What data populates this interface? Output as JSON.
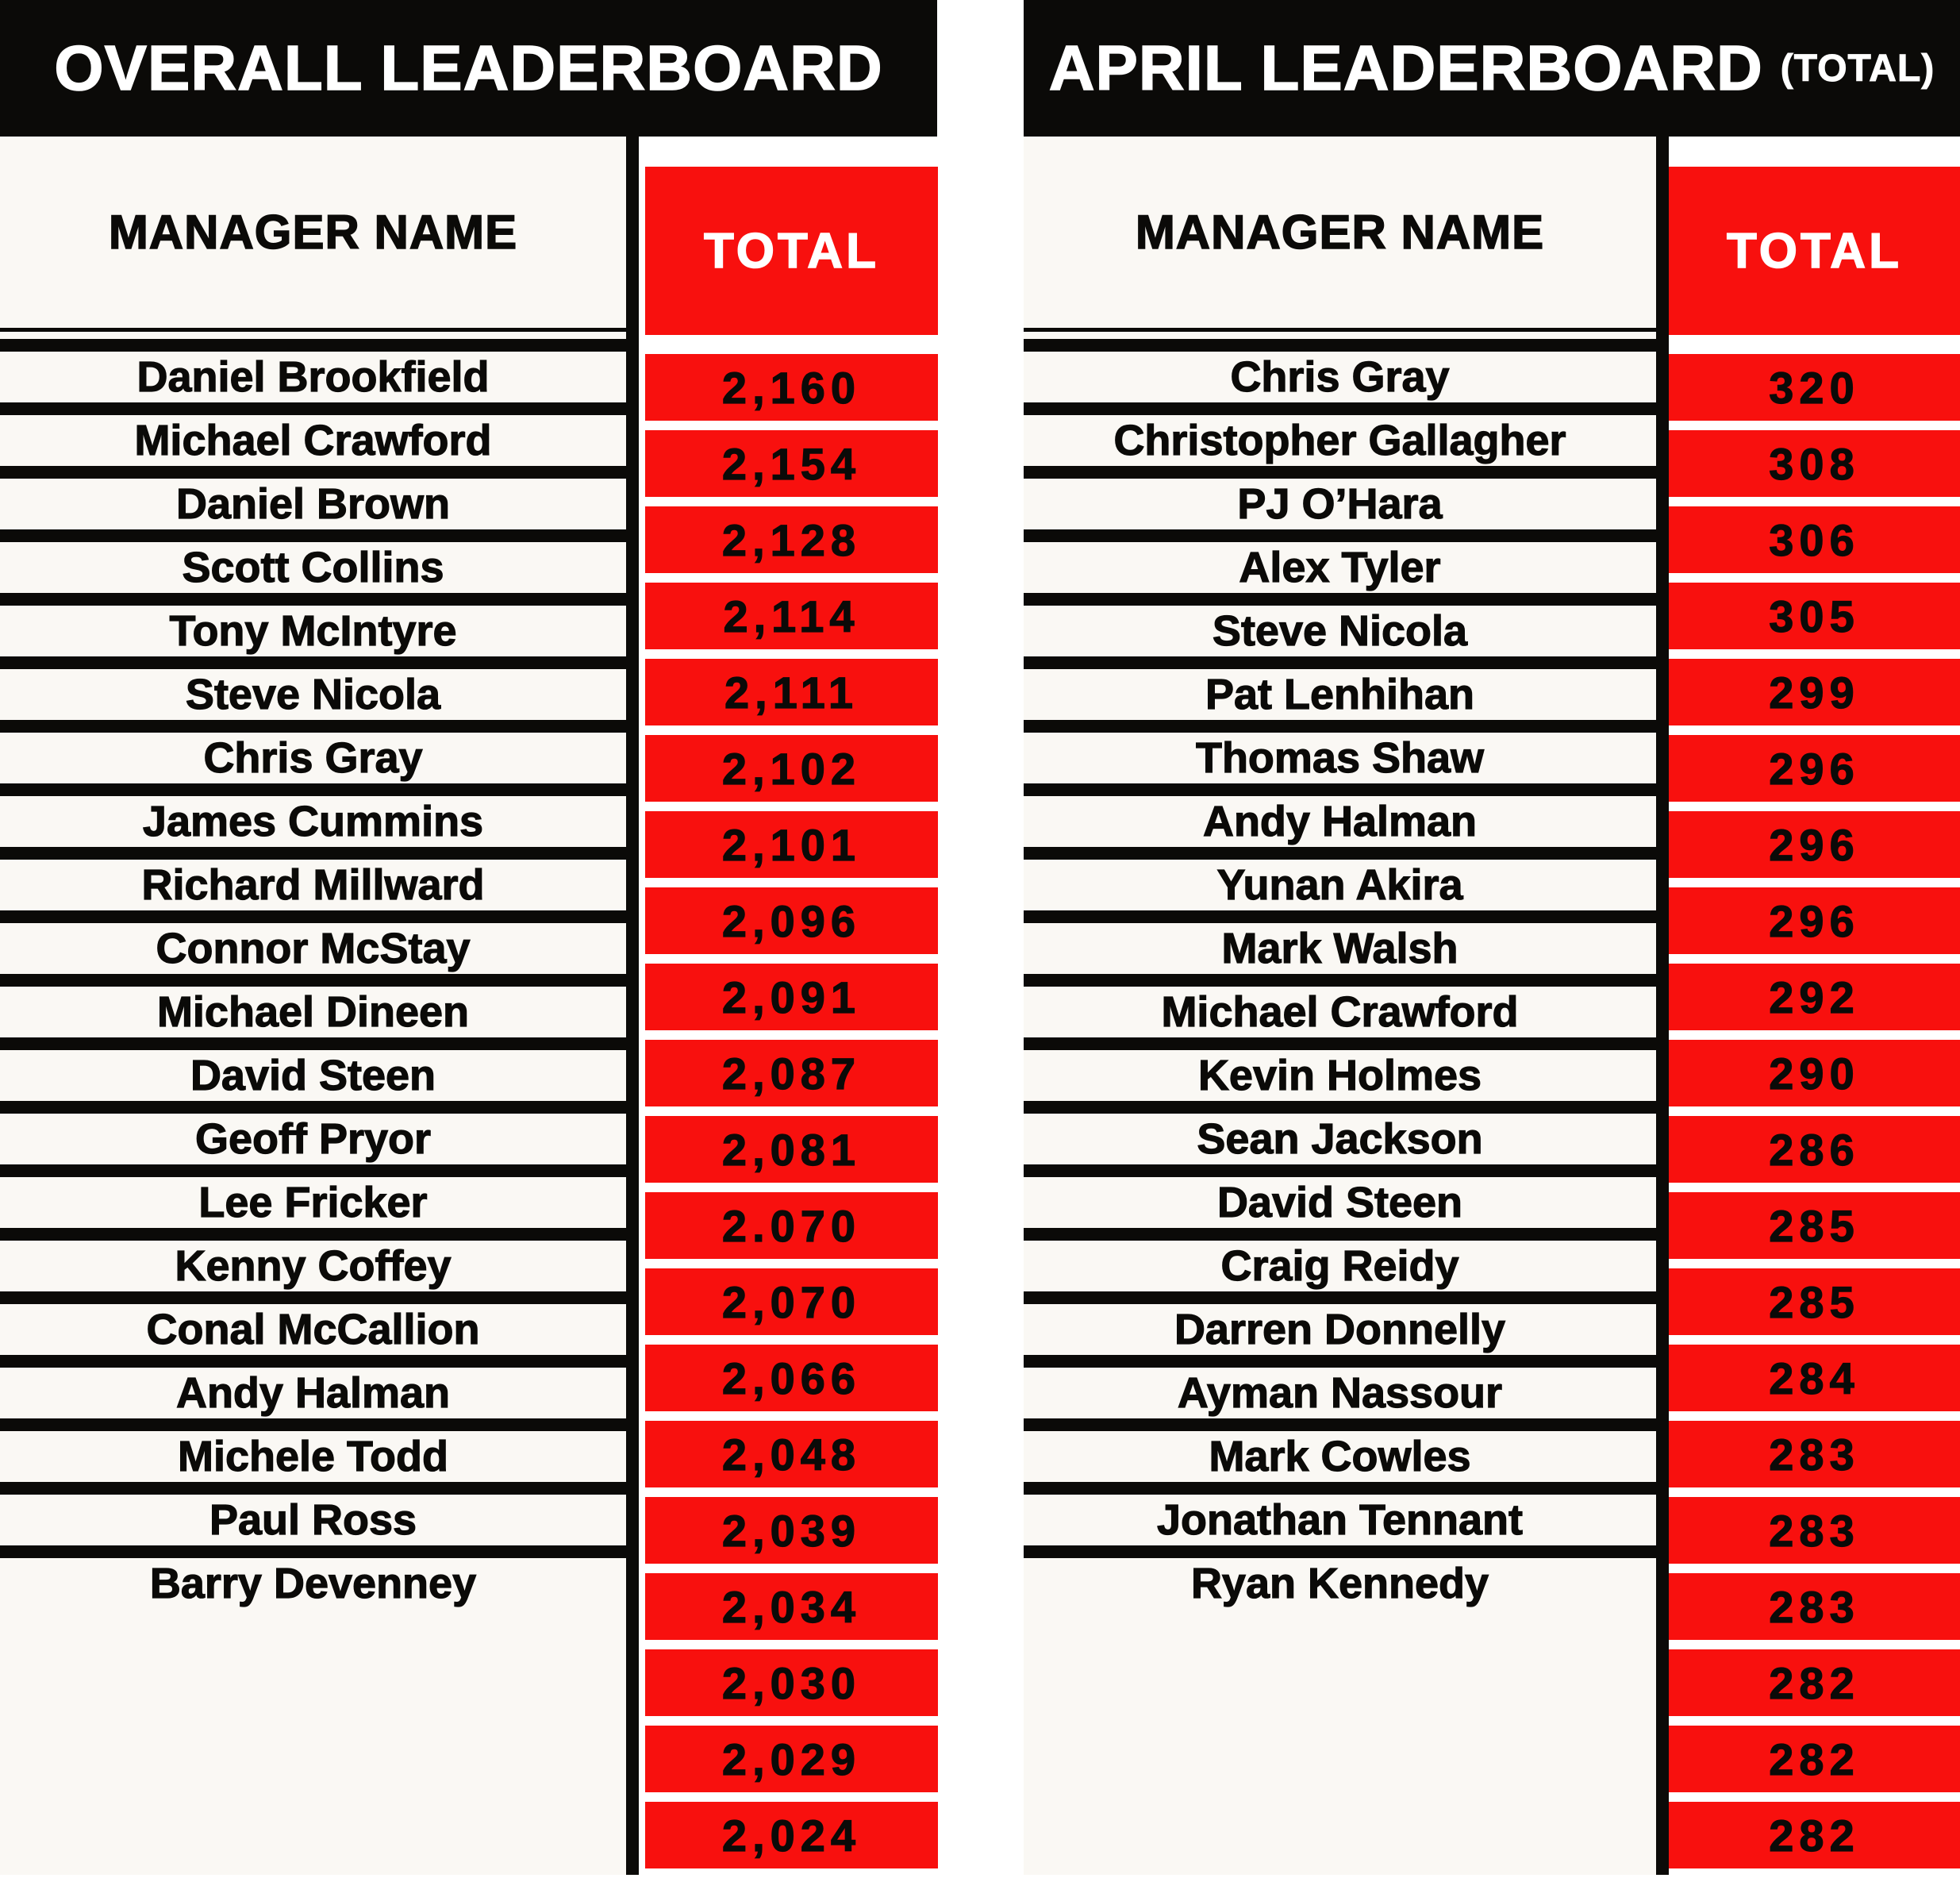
{
  "colors": {
    "accent_red": "#f8100e",
    "ink_black": "#0b0a08",
    "cell_offwhite": "#faf8f4",
    "gutter_white": "#ffffff",
    "title_text_white": "#ffffff"
  },
  "chart_data": [
    {
      "type": "table",
      "panel": "overall",
      "title": "OVERALL LEADERBOARD",
      "title_suffix": "",
      "columns": {
        "name": "MANAGER NAME",
        "total": "TOTAL"
      },
      "rows": [
        {
          "name": "Daniel Brookfield",
          "total": "2,160"
        },
        {
          "name": "Michael Crawford",
          "total": "2,154"
        },
        {
          "name": "Daniel Brown",
          "total": "2,128"
        },
        {
          "name": "Scott Collins",
          "total": "2,114"
        },
        {
          "name": "Tony McIntyre",
          "total": "2,111"
        },
        {
          "name": "Steve Nicola",
          "total": "2,102"
        },
        {
          "name": "Chris Gray",
          "total": "2,101"
        },
        {
          "name": "James Cummins",
          "total": "2,096"
        },
        {
          "name": "Richard Millward",
          "total": "2,091"
        },
        {
          "name": "Connor McStay",
          "total": "2,087"
        },
        {
          "name": "Michael Dineen",
          "total": "2,081"
        },
        {
          "name": "David Steen",
          "total": "2.070"
        },
        {
          "name": "Geoff Pryor",
          "total": "2,070"
        },
        {
          "name": "Lee Fricker",
          "total": "2,066"
        },
        {
          "name": "Kenny Coffey",
          "total": "2,048"
        },
        {
          "name": "Conal McCallion",
          "total": "2,039"
        },
        {
          "name": "Andy Halman",
          "total": "2,034"
        },
        {
          "name": "Michele Todd",
          "total": "2,030"
        },
        {
          "name": "Paul Ross",
          "total": "2,029"
        },
        {
          "name": "Barry Devenney",
          "total": "2,024"
        }
      ]
    },
    {
      "type": "table",
      "panel": "april",
      "title": "APRIL LEADERBOARD",
      "title_suffix": "(TOTAL)",
      "columns": {
        "name": "MANAGER NAME",
        "total": "TOTAL"
      },
      "rows": [
        {
          "name": "Chris Gray",
          "total": "320"
        },
        {
          "name": "Christopher Gallagher",
          "total": "308"
        },
        {
          "name": "PJ O’Hara",
          "total": "306"
        },
        {
          "name": "Alex Tyler",
          "total": "305"
        },
        {
          "name": "Steve Nicola",
          "total": "299"
        },
        {
          "name": "Pat Lenhihan",
          "total": "296"
        },
        {
          "name": "Thomas Shaw",
          "total": "296"
        },
        {
          "name": "Andy Halman",
          "total": "296"
        },
        {
          "name": "Yunan Akira",
          "total": "292"
        },
        {
          "name": "Mark Walsh",
          "total": "290"
        },
        {
          "name": "Michael Crawford",
          "total": "286"
        },
        {
          "name": "Kevin Holmes",
          "total": "285"
        },
        {
          "name": "Sean Jackson",
          "total": "285"
        },
        {
          "name": "David Steen",
          "total": "284"
        },
        {
          "name": "Craig Reidy",
          "total": "283"
        },
        {
          "name": "Darren Donnelly",
          "total": "283"
        },
        {
          "name": "Ayman Nassour",
          "total": "283"
        },
        {
          "name": "Mark Cowles",
          "total": "282"
        },
        {
          "name": "Jonathan Tennant",
          "total": "282"
        },
        {
          "name": "Ryan Kennedy",
          "total": "282"
        }
      ]
    }
  ]
}
